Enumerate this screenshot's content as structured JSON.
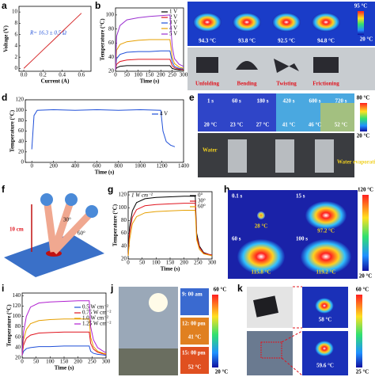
{
  "panel_letters": [
    "a",
    "b",
    "c",
    "d",
    "e",
    "f",
    "g",
    "h",
    "i",
    "j",
    "k"
  ],
  "chart_data": [
    {
      "type": "line",
      "xlabel": "Current (A)",
      "ylabel": "Voltage (V)",
      "annotation": "R= 16.3 ± 0.5 Ω",
      "x": [
        0,
        0.1,
        0.2,
        0.3,
        0.4,
        0.5,
        0.6
      ],
      "xlim": [
        -0.05,
        0.7
      ],
      "ylim": [
        -0.5,
        11
      ],
      "xticks": [
        {
          "value": 0,
          "label": "0.0"
        },
        0.2,
        0.4,
        0.6
      ],
      "yticks": [
        0,
        2,
        4,
        6,
        8,
        10
      ],
      "series": [
        {
          "color": "#d62728",
          "values": [
            0,
            1.63,
            3.26,
            4.89,
            6.52,
            8.15,
            9.78
          ]
        }
      ]
    },
    {
      "type": "line",
      "xlabel": "Time (s)",
      "ylabel": "Temperature (°C)",
      "x": [
        0,
        5,
        20,
        50,
        100,
        150,
        200,
        240,
        250,
        260,
        280,
        300
      ],
      "xlim": [
        0,
        300
      ],
      "ylim": [
        20,
        110
      ],
      "xticks": [
        0,
        50,
        100,
        150,
        200,
        250,
        300
      ],
      "yticks": [
        20,
        40,
        60,
        80,
        100
      ],
      "series": [
        {
          "name": "1 V",
          "color": "#000000",
          "values": [
            22,
            25,
            27,
            28,
            28,
            28,
            28,
            28,
            24,
            23,
            22,
            22
          ]
        },
        {
          "name": "2 V",
          "color": "#e0141e",
          "values": [
            22,
            30,
            34,
            36,
            37,
            37,
            37,
            37,
            28,
            25,
            23,
            22
          ]
        },
        {
          "name": "3 V",
          "color": "#1f4fd8",
          "values": [
            22,
            38,
            44,
            47,
            48,
            48,
            49,
            49,
            33,
            27,
            24,
            23
          ]
        },
        {
          "name": "4 V",
          "color": "#e69f00",
          "values": [
            22,
            50,
            58,
            62,
            64,
            65,
            65,
            65,
            40,
            31,
            26,
            24
          ]
        },
        {
          "name": "5 V",
          "color": "#9b30d0",
          "values": [
            22,
            70,
            85,
            93,
            96,
            98,
            99,
            100,
            55,
            38,
            30,
            27
          ]
        }
      ]
    },
    {
      "type": "line",
      "xlabel": "Time (s)",
      "ylabel": "Temperature (°C)",
      "x": [
        0,
        20,
        50,
        200,
        400,
        600,
        800,
        1000,
        1190,
        1210,
        1240,
        1280,
        1320
      ],
      "xlim": [
        -60,
        1400
      ],
      "ylim": [
        0,
        120
      ],
      "xticks": [
        0,
        200,
        400,
        600,
        800,
        1000,
        1200,
        1400
      ],
      "yticks": [
        0,
        20,
        40,
        60,
        80,
        100,
        120
      ],
      "series": [
        {
          "name": "4 V",
          "color": "#1f4fd8",
          "values": [
            25,
            90,
            100,
            101,
            100,
            101,
            100,
            101,
            100,
            60,
            40,
            33,
            30
          ]
        }
      ]
    },
    {
      "type": "line",
      "xlabel": "Time (s)",
      "ylabel": "Temperature (°C)",
      "annotation": "1 W cm⁻²",
      "x": [
        0,
        5,
        15,
        30,
        60,
        100,
        150,
        200,
        240,
        245,
        255,
        270,
        290,
        300
      ],
      "xlim": [
        0,
        300
      ],
      "ylim": [
        20,
        125
      ],
      "xticks": [
        0,
        50,
        100,
        150,
        200,
        250,
        300
      ],
      "yticks": [
        20,
        40,
        60,
        80,
        100,
        120
      ],
      "series": [
        {
          "name": "0°",
          "color": "#000000",
          "values": [
            25,
            70,
            95,
            108,
            114,
            116,
            117,
            118,
            118,
            60,
            40,
            30,
            27,
            26
          ]
        },
        {
          "name": "30°",
          "color": "#e0141e",
          "values": [
            25,
            60,
            85,
            97,
            103,
            105,
            106,
            107,
            107,
            55,
            38,
            29,
            27,
            26
          ]
        },
        {
          "name": "60°",
          "color": "#e69f00",
          "values": [
            25,
            50,
            75,
            86,
            92,
            94,
            95,
            96,
            96,
            50,
            35,
            28,
            26,
            25
          ]
        }
      ]
    },
    {
      "type": "line",
      "xlabel": "Time (s)",
      "ylabel": "Temperature (°C)",
      "x": [
        0,
        5,
        15,
        30,
        60,
        100,
        150,
        200,
        240,
        245,
        255,
        270,
        290,
        300
      ],
      "xlim": [
        0,
        300
      ],
      "ylim": [
        20,
        145
      ],
      "xticks": [
        0,
        50,
        100,
        150,
        200,
        250,
        300
      ],
      "yticks": [
        20,
        40,
        60,
        80,
        100,
        120,
        140
      ],
      "series": [
        {
          "name": "0.5 W cm⁻²",
          "color": "#1f4fd8",
          "values": [
            25,
            33,
            38,
            40,
            42,
            42,
            43,
            43,
            43,
            33,
            29,
            27,
            26,
            25
          ]
        },
        {
          "name": "0.75 W cm⁻²",
          "color": "#e0141e",
          "values": [
            25,
            45,
            58,
            64,
            68,
            69,
            70,
            70,
            70,
            48,
            37,
            31,
            28,
            27
          ]
        },
        {
          "name": "1.0 W cm⁻²",
          "color": "#e69f00",
          "values": [
            25,
            55,
            75,
            86,
            92,
            94,
            95,
            95,
            95,
            60,
            42,
            33,
            29,
            28
          ]
        },
        {
          "name": "1.25 W cm⁻²",
          "color": "#b01fd0",
          "values": [
            25,
            70,
            100,
            118,
            126,
            128,
            129,
            130,
            130,
            80,
            55,
            40,
            33,
            30
          ]
        }
      ]
    }
  ],
  "panel_c": {
    "temps": [
      "94.3 °C",
      "93.8 °C",
      "92.5 °C",
      "94.8 °C"
    ],
    "labels": [
      "Unfolding",
      "Bending",
      "Twisting",
      "Frictioning"
    ],
    "scale": [
      "95 °C",
      "20 °C"
    ]
  },
  "panel_e": {
    "times": [
      "1 s",
      "60 s",
      "180 s",
      "420 s",
      "600 s",
      "720 s"
    ],
    "temps": [
      "20 °C",
      "23 °C",
      "27 °C",
      "41 °C",
      "46 °C",
      "52 °C"
    ],
    "labels": [
      "Water",
      "Water evaporation"
    ],
    "scale": [
      "80 °C",
      "20 °C"
    ]
  },
  "panel_f": {
    "height": "10 cm",
    "angles": [
      "30°",
      "60°"
    ]
  },
  "panel_h": {
    "times": [
      "0.1 s",
      "15 s",
      "60 s",
      "100 s"
    ],
    "temps": [
      "28 °C",
      "97.2 °C",
      "115.8 °C",
      "119.2 °C"
    ],
    "scale": [
      "120 °C",
      "20 °C"
    ]
  },
  "panel_j": {
    "times": [
      "9: 00 am",
      "12: 00 pm",
      "15: 00 pm"
    ],
    "temps": [
      "41 °C",
      "52 °C"
    ],
    "scale": [
      "60 °C",
      "20 °C"
    ]
  },
  "panel_k": {
    "temps": [
      "58 °C",
      "59.6 °C"
    ],
    "scale": [
      "60 °C",
      "25 °C"
    ]
  }
}
